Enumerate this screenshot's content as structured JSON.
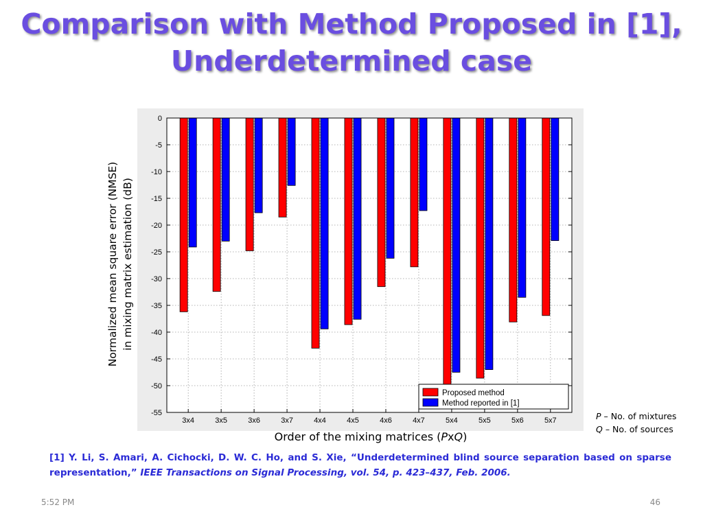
{
  "slide": {
    "title_line1": "Comparison with Method Proposed in [1],",
    "title_line2": "Underdetermined case",
    "notes": {
      "p_var": "P",
      "p_text": " – No. of mixtures",
      "q_var": "Q",
      "q_text": " – No. of sources"
    },
    "reference": {
      "prefix": "[1] Y. Li, S. Amari, A. Cichocki, D. W. C. Ho, and S. Xie, “Underdetermined blind source separation based on sparse representation,”",
      "journal": "IEEE Transactions on Signal Processing, vol. 54, p. 423–437, Feb. 2006."
    },
    "footer_time": "5:52 PM",
    "page_number": "46"
  },
  "chart_data": {
    "type": "bar",
    "ylabel_line1": "Normalized mean square error (NMSE)",
    "ylabel_line2": "in mixing matrix estimation (dB)",
    "xlabel_prefix": "Order of the mixing matrices (",
    "xlabel_p": "P",
    "xlabel_x": "x",
    "xlabel_q": "Q",
    "xlabel_suffix": ")",
    "categories": [
      "3x4",
      "3x5",
      "3x6",
      "3x7",
      "4x4",
      "4x5",
      "4x6",
      "4x7",
      "5x4",
      "5x5",
      "5x6",
      "5x7"
    ],
    "series": [
      {
        "name": "Proposed method",
        "color": "#ff0000",
        "values": [
          -36.2,
          -32.4,
          -24.8,
          -18.5,
          -43.0,
          -38.6,
          -31.5,
          -27.8,
          -51.2,
          -48.6,
          -38.1,
          -36.9
        ]
      },
      {
        "name": "Method reported in [1]",
        "color": "#0000ff",
        "values": [
          -24.1,
          -23.0,
          -17.7,
          -12.6,
          -39.4,
          -37.6,
          -26.2,
          -17.3,
          -47.5,
          -47.0,
          -33.5,
          -22.9
        ]
      }
    ],
    "ylim": [
      -55,
      0
    ],
    "yticks": [
      0,
      -5,
      -10,
      -15,
      -20,
      -25,
      -30,
      -35,
      -40,
      -45,
      -50,
      -55
    ],
    "grid": true,
    "legend_position": "bottom-right"
  }
}
